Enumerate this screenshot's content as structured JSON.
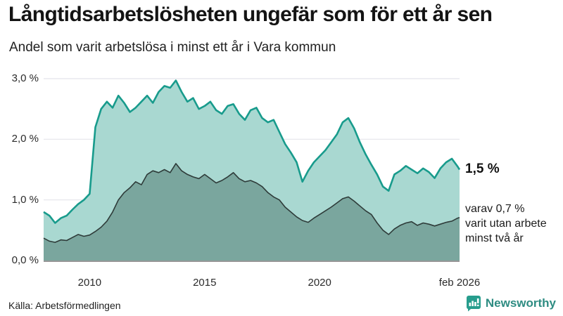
{
  "header": {
    "title": "Långtidsarbetslösheten ungefär som för ett år sen",
    "subtitle": "Andel som varit arbetslösa i minst ett år i Vara kommun"
  },
  "chart_data": {
    "type": "area",
    "title": "Långtidsarbetslösheten ungefär som för ett år sen",
    "subtitle": "Andel som varit arbetslösa i minst ett år i Vara kommun",
    "unit": "%",
    "grid": true,
    "legend_position": "none",
    "x_axis": {
      "range": [
        2008,
        2026.083
      ],
      "ticks": [
        {
          "label": "2010",
          "year": 2010
        },
        {
          "label": "2015",
          "year": 2015
        },
        {
          "label": "2020",
          "year": 2020
        },
        {
          "label": "feb 2026",
          "year": 2026.083
        }
      ]
    },
    "y_axis": {
      "range": [
        0,
        3
      ],
      "ticks": [
        {
          "label": "3,0 %",
          "value": 3.0
        },
        {
          "label": "2,0 %",
          "value": 2.0
        },
        {
          "label": "1,0 %",
          "value": 1.0
        },
        {
          "label": "0,0 %",
          "value": 0.0
        }
      ]
    },
    "x": [
      2008,
      2008.25,
      2008.5,
      2008.75,
      2009,
      2009.25,
      2009.5,
      2009.75,
      2010,
      2010.25,
      2010.5,
      2010.75,
      2011,
      2011.25,
      2011.5,
      2011.75,
      2012,
      2012.25,
      2012.5,
      2012.75,
      2013,
      2013.25,
      2013.5,
      2013.75,
      2014,
      2014.25,
      2014.5,
      2014.75,
      2015,
      2015.25,
      2015.5,
      2015.75,
      2016,
      2016.25,
      2016.5,
      2016.75,
      2017,
      2017.25,
      2017.5,
      2017.75,
      2018,
      2018.25,
      2018.5,
      2018.75,
      2019,
      2019.25,
      2019.5,
      2019.75,
      2020,
      2020.25,
      2020.5,
      2020.75,
      2021,
      2021.25,
      2021.5,
      2021.75,
      2022,
      2022.25,
      2022.5,
      2022.75,
      2023,
      2023.25,
      2023.5,
      2023.75,
      2024,
      2024.25,
      2024.5,
      2024.75,
      2025,
      2025.25,
      2025.5,
      2025.75,
      2026,
      2026.083
    ],
    "series": [
      {
        "name": "Arbetslösa minst ett år",
        "line_color": "#189b8c",
        "fill_color": "#a9d8d1",
        "line_width": 2.6,
        "values": [
          0.8,
          0.74,
          0.62,
          0.7,
          0.74,
          0.84,
          0.93,
          1.0,
          1.1,
          2.2,
          2.5,
          2.62,
          2.52,
          2.72,
          2.6,
          2.45,
          2.52,
          2.62,
          2.72,
          2.6,
          2.78,
          2.88,
          2.85,
          2.97,
          2.78,
          2.62,
          2.68,
          2.5,
          2.55,
          2.62,
          2.48,
          2.42,
          2.55,
          2.58,
          2.42,
          2.32,
          2.48,
          2.52,
          2.35,
          2.28,
          2.32,
          2.12,
          1.92,
          1.78,
          1.62,
          1.3,
          1.48,
          1.62,
          1.72,
          1.82,
          1.95,
          2.08,
          2.28,
          2.35,
          2.18,
          1.95,
          1.75,
          1.58,
          1.42,
          1.22,
          1.15,
          1.42,
          1.48,
          1.56,
          1.5,
          1.44,
          1.52,
          1.46,
          1.36,
          1.52,
          1.62,
          1.68,
          1.55,
          1.5
        ]
      },
      {
        "name": "Arbetslösa minst två år",
        "line_color": "#2e3b39",
        "fill_color": "#7aa69e",
        "line_width": 1.6,
        "values": [
          0.37,
          0.32,
          0.3,
          0.34,
          0.33,
          0.38,
          0.43,
          0.4,
          0.42,
          0.48,
          0.55,
          0.65,
          0.8,
          1.0,
          1.12,
          1.2,
          1.3,
          1.25,
          1.42,
          1.48,
          1.45,
          1.5,
          1.45,
          1.6,
          1.48,
          1.42,
          1.38,
          1.35,
          1.42,
          1.35,
          1.28,
          1.32,
          1.38,
          1.45,
          1.35,
          1.3,
          1.32,
          1.28,
          1.22,
          1.12,
          1.05,
          1.0,
          0.88,
          0.8,
          0.72,
          0.66,
          0.63,
          0.7,
          0.76,
          0.82,
          0.88,
          0.95,
          1.02,
          1.05,
          0.98,
          0.9,
          0.82,
          0.76,
          0.62,
          0.5,
          0.43,
          0.52,
          0.58,
          0.62,
          0.64,
          0.58,
          0.62,
          0.6,
          0.57,
          0.6,
          0.63,
          0.65,
          0.7,
          0.71
        ]
      }
    ],
    "annotations": {
      "total": "1,5 %",
      "secondary_lines": [
        "varav 0,7 %",
        "varit utan arbete",
        "minst två år"
      ]
    }
  },
  "colors": {
    "accent_teal": "#189b8c",
    "fill_light": "#a9d8d1",
    "fill_dark": "#7aa69e",
    "line_dark": "#2e3b39",
    "gridline": "#e4e4ea",
    "baseline": "#757575",
    "brand_teal": "#2e8c82"
  },
  "footer": {
    "source": "Källa: Arbetsförmedlingen",
    "brand": "Newsworthy"
  }
}
